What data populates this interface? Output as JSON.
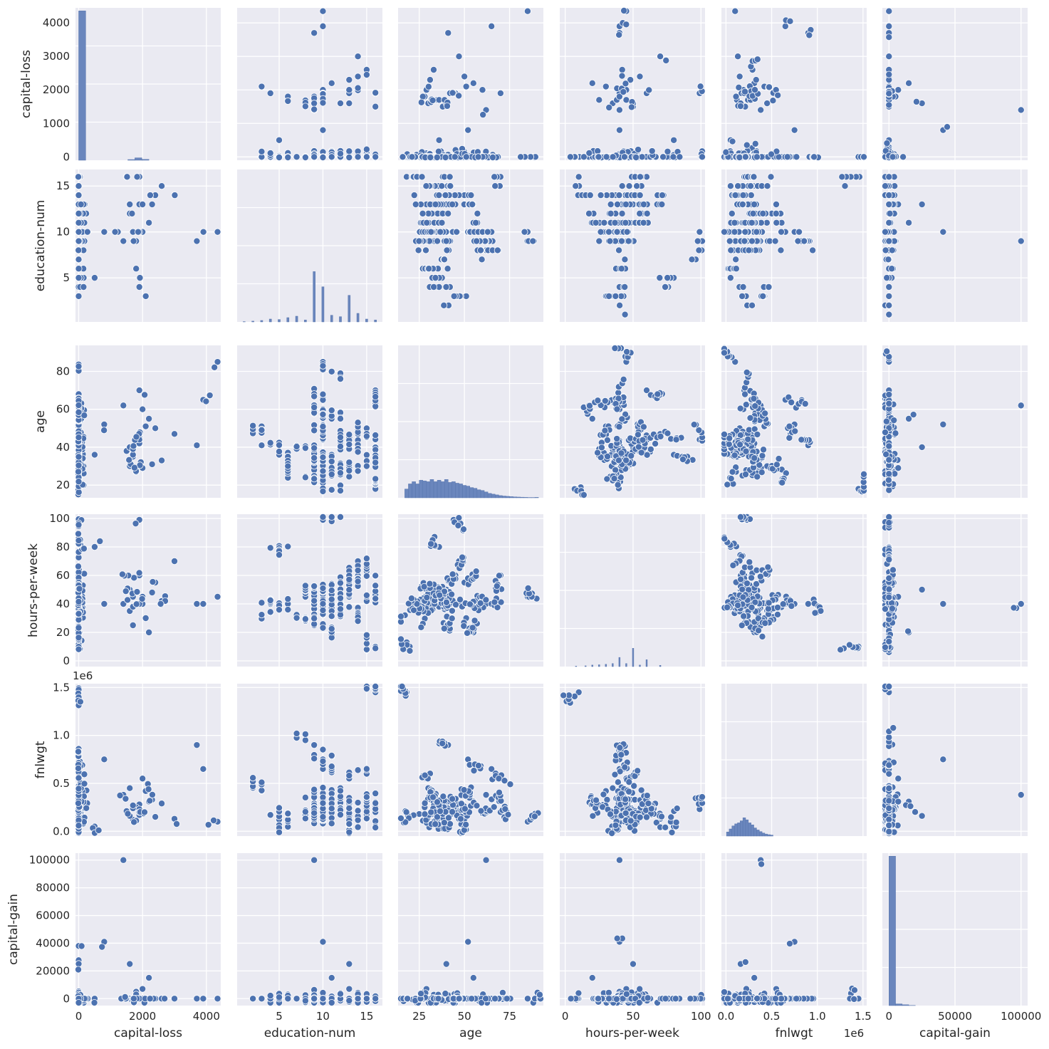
{
  "chart_data": {
    "type": "pairplot",
    "title": "",
    "variables": [
      "capital-loss",
      "education-num",
      "age",
      "hours-per-week",
      "fnlwgt",
      "capital-gain"
    ],
    "axes": {
      "capital-loss": {
        "range": [
          -100,
          4450
        ],
        "ticks": [
          0,
          2000,
          4000
        ],
        "tick_labels": [
          "0",
          "2000",
          "4000"
        ],
        "y_ticks": [
          0,
          1000,
          2000,
          3000,
          4000
        ],
        "y_tick_labels": [
          "0",
          "1000",
          "2000",
          "3000",
          "4000"
        ],
        "offset_text": ""
      },
      "education-num": {
        "range": [
          0.2,
          16.8
        ],
        "ticks": [
          5,
          10,
          15
        ],
        "tick_labels": [
          "5",
          "10",
          "15"
        ],
        "y_ticks": [
          5,
          10,
          15
        ],
        "y_tick_labels": [
          "5",
          "10",
          "15"
        ],
        "offset_text": ""
      },
      "age": {
        "range": [
          13.3,
          93.7
        ],
        "ticks": [
          25,
          50,
          75
        ],
        "tick_labels": [
          "25",
          "50",
          "75"
        ],
        "y_ticks": [
          20,
          40,
          60,
          80
        ],
        "y_tick_labels": [
          "20",
          "40",
          "60",
          "80"
        ],
        "offset_text": ""
      },
      "hours-per-week": {
        "range": [
          -4,
          103
        ],
        "ticks": [
          0,
          50,
          100
        ],
        "tick_labels": [
          "0",
          "50",
          "100"
        ],
        "y_ticks": [
          0,
          20,
          40,
          60,
          80,
          100
        ],
        "y_tick_labels": [
          "0",
          "20",
          "40",
          "60",
          "80",
          "100"
        ],
        "offset_text": ""
      },
      "fnlwgt": {
        "range": [
          -0.05,
          1.54
        ],
        "ticks": [
          0.0,
          0.5,
          1.0,
          1.5
        ],
        "tick_labels": [
          "0.0",
          "0.5",
          "1.0",
          "1.5"
        ],
        "y_ticks": [
          0.0,
          0.5,
          1.0,
          1.5
        ],
        "y_tick_labels": [
          "0.0",
          "0.5",
          "1.0",
          "1.5"
        ],
        "offset_text": "1e6"
      },
      "capital-gain": {
        "range": [
          -5000,
          105000
        ],
        "ticks": [
          0,
          50000,
          100000
        ],
        "tick_labels": [
          "0",
          "50000",
          "100000"
        ],
        "y_ticks": [
          0,
          20000,
          40000,
          60000,
          80000,
          100000
        ],
        "y_tick_labels": [
          "0",
          "20000",
          "40000",
          "60000",
          "80000",
          "100000"
        ],
        "offset_text": ""
      }
    },
    "diagonal_histograms": {
      "capital-loss": {
        "bin_centers": [
          110,
          1650,
          1870,
          2090
        ],
        "values": [
          4350,
          20,
          70,
          25
        ]
      },
      "education-num": {
        "bin_centers": [
          1,
          2,
          3,
          4,
          5,
          6,
          7,
          8,
          9,
          10,
          11,
          12,
          13,
          14,
          15,
          16
        ],
        "values": [
          3,
          8,
          15,
          30,
          25,
          45,
          60,
          20,
          530,
          370,
          70,
          55,
          280,
          90,
          30,
          20
        ]
      },
      "age": {
        "bin_centers": [
          18,
          20,
          22,
          24,
          26,
          28,
          30,
          32,
          34,
          36,
          38,
          40,
          42,
          44,
          46,
          48,
          50,
          52,
          54,
          56,
          58,
          60,
          62,
          64,
          66,
          68,
          70,
          72,
          74,
          76,
          78,
          80,
          82,
          84,
          86,
          88,
          90
        ],
        "values": [
          60,
          95,
          110,
          95,
          120,
          115,
          110,
          125,
          110,
          120,
          110,
          125,
          105,
          110,
          100,
          95,
          85,
          80,
          70,
          65,
          55,
          50,
          40,
          30,
          25,
          20,
          15,
          12,
          10,
          8,
          6,
          5,
          4,
          3,
          2,
          2,
          3
        ]
      },
      "hours-per-week": {
        "bin_centers": [
          8,
          15,
          20,
          25,
          30,
          35,
          40,
          45,
          50,
          55,
          60,
          70
        ],
        "values": [
          3,
          5,
          10,
          12,
          15,
          20,
          60,
          20,
          120,
          10,
          45,
          8
        ]
      },
      "fnlwgt": {
        "bin_centers": [
          0.02,
          0.05,
          0.08,
          0.11,
          0.14,
          0.17,
          0.2,
          0.23,
          0.26,
          0.29,
          0.32,
          0.35,
          0.38,
          0.41,
          0.44,
          0.47,
          0.5
        ],
        "values": [
          20,
          35,
          50,
          60,
          65,
          75,
          90,
          80,
          65,
          55,
          40,
          30,
          22,
          15,
          10,
          7,
          5
        ]
      },
      "capital-gain": {
        "bin_centers": [
          2500,
          7500,
          12500,
          17500
        ],
        "values": [
          4500,
          50,
          25,
          5
        ]
      }
    },
    "scatter": {
      "capital-loss": [
        0,
        0,
        0,
        1700,
        1900,
        2000,
        1600,
        2400,
        1800,
        2200,
        1500,
        1900,
        2000,
        1700,
        3000,
        1400,
        2600,
        1600,
        1900,
        2100,
        1800,
        2300,
        1700,
        1900,
        0,
        3700,
        3900,
        4350,
        800,
        500
      ],
      "education-num": [
        10,
        13,
        9,
        9,
        13,
        10,
        12,
        14,
        9,
        11,
        16,
        4,
        13,
        10,
        14,
        9,
        15,
        13,
        10,
        3,
        6,
        13,
        9,
        16,
        16,
        9,
        10,
        10,
        10,
        5
      ],
      "age": [
        25,
        40,
        33,
        35,
        45,
        60,
        30,
        50,
        28,
        55,
        38,
        42,
        29,
        36,
        47,
        62,
        33,
        40,
        44,
        51,
        27,
        31,
        39,
        70,
        18,
        41,
        65,
        85,
        52,
        36
      ],
      "hours-per-week": [
        40,
        50,
        40,
        45,
        60,
        40,
        35,
        55,
        40,
        20,
        50,
        40,
        45,
        38,
        70,
        40,
        42,
        50,
        99,
        30,
        40,
        48,
        25,
        60,
        10,
        40,
        40,
        45,
        40,
        80
      ],
      "fnlwgt": [
        0.18,
        0.22,
        0.35,
        0.12,
        0.28,
        0.19,
        0.45,
        0.15,
        0.25,
        0.31,
        0.21,
        0.17,
        0.55,
        0.24,
        0.13,
        0.38,
        0.29,
        0.16,
        0.23,
        0.42,
        0.11,
        0.33,
        0.27,
        0.2,
        1.45,
        0.9,
        0.65,
        0.1,
        0.75,
        0.05
      ],
      "capital-gain": [
        0,
        0,
        0,
        0,
        0,
        0,
        0,
        0,
        5000,
        15000,
        0,
        0,
        7000,
        0,
        0,
        99999,
        0,
        25000,
        0,
        0,
        3000,
        0,
        0,
        0,
        0,
        0,
        0,
        0,
        41000,
        0
      ]
    }
  }
}
